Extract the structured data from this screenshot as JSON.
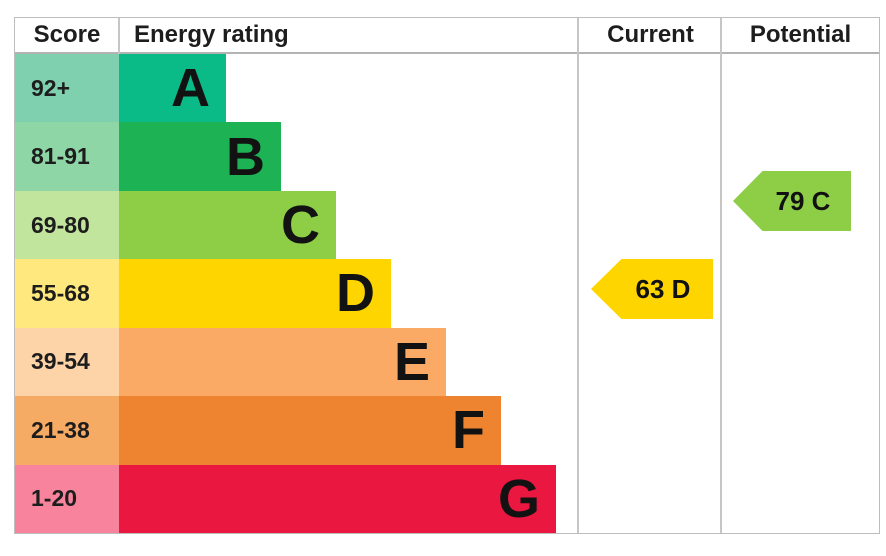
{
  "table": {
    "headers": {
      "score": "Score",
      "rating": "Energy rating",
      "current": "Current",
      "potential": "Potential"
    }
  },
  "chart_data": {
    "type": "bar",
    "subtype": "epc-energy-rating",
    "columns": [
      "Score",
      "Energy rating",
      "Current",
      "Potential"
    ],
    "bands": [
      {
        "letter": "A",
        "score": "92+",
        "range": [
          92,
          100
        ],
        "color": "#0abb87",
        "tint_color": "#7fd0ae"
      },
      {
        "letter": "B",
        "score": "81-91",
        "range": [
          81,
          91
        ],
        "color": "#1db254",
        "tint_color": "#8ed6a5"
      },
      {
        "letter": "C",
        "score": "69-80",
        "range": [
          69,
          80
        ],
        "color": "#8dce46",
        "tint_color": "#c2e59e"
      },
      {
        "letter": "D",
        "score": "55-68",
        "range": [
          55,
          68
        ],
        "color": "#ffd500",
        "tint_color": "#ffe97f"
      },
      {
        "letter": "E",
        "score": "39-54",
        "range": [
          39,
          54
        ],
        "color": "#fbaa65",
        "tint_color": "#fdd3a8"
      },
      {
        "letter": "F",
        "score": "21-38",
        "range": [
          21,
          38
        ],
        "color": "#ef8430",
        "tint_color": "#f6ab64"
      },
      {
        "letter": "G",
        "score": "1-20",
        "range": [
          1,
          20
        ],
        "color": "#ea1740",
        "tint_color": "#f7849c"
      }
    ],
    "current": {
      "label": "63 D",
      "value": 63,
      "band": "D",
      "color": "#ffd500"
    },
    "potential": {
      "label": "79 C",
      "value": 79,
      "band": "C",
      "color": "#8dce46"
    },
    "legend_position": "none",
    "grid": "column-dividers",
    "border_color": "#bdbdbd"
  }
}
